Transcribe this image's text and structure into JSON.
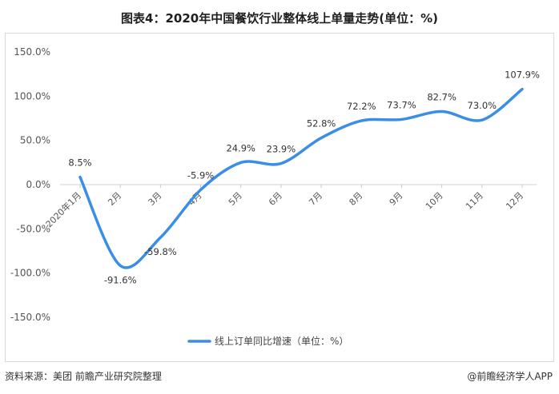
{
  "header": {
    "title": "图表4：2020年中国餐饮行业整体线上单量走势(单位：%)"
  },
  "footer": {
    "source": "资料来源：美团 前瞻产业研究院整理",
    "credit": "@前瞻经济学人APP"
  },
  "colors": {
    "line": "#3a8ee6"
  },
  "chart_data": {
    "type": "line",
    "categories": [
      "2020年1月",
      "2月",
      "3月",
      "4月",
      "5月",
      "6月",
      "7月",
      "8月",
      "9月",
      "10月",
      "11月",
      "12月"
    ],
    "series": [
      {
        "name": "线上订单同比增速（单位：%）",
        "values": [
          8.5,
          -91.6,
          -59.8,
          -5.9,
          24.9,
          23.9,
          52.8,
          72.2,
          73.7,
          82.7,
          73.0,
          107.9
        ],
        "labels": [
          "8.5%",
          "-91.6%",
          "-59.8%",
          "-5.9%",
          "24.9%",
          "23.9%",
          "52.8%",
          "72.2%",
          "73.7%",
          "82.7%",
          "73.0%",
          "107.9%"
        ]
      }
    ],
    "ylim": [
      -150,
      150
    ],
    "yticks": [
      150,
      100,
      50,
      0,
      -50,
      -100,
      -150
    ],
    "ytick_labels": [
      "150.0%",
      "100.0%",
      "50.0%",
      "0.0%",
      "-50.0%",
      "-100.0%",
      "-150.0%"
    ],
    "grid": false,
    "legend": "bottom"
  }
}
